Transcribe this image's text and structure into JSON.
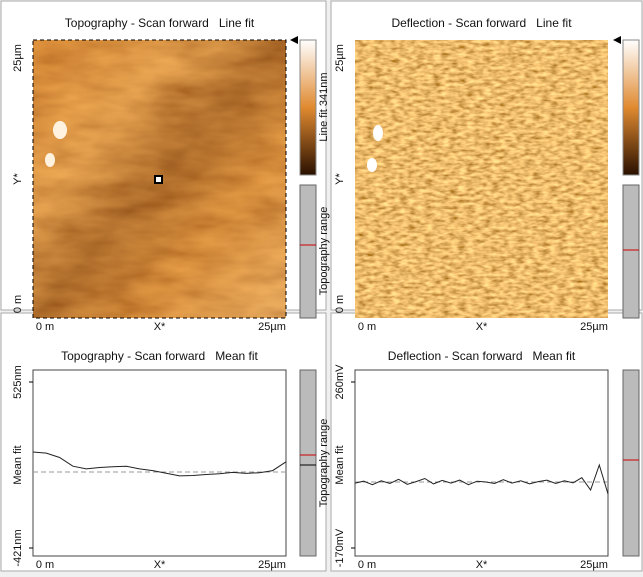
{
  "panels": [
    {
      "title": "Topography - Scan forward   Line fit",
      "x_labels": [
        "0 m",
        "X*",
        "25µm"
      ],
      "y_labels": [
        "25µm",
        "Y*",
        "0 m"
      ],
      "colorbar_label": "Line fit 341nm",
      "range_label": "Topography range"
    },
    {
      "title": "Deflection - Scan forward   Line fit",
      "x_labels": [
        "0 m",
        "X*",
        "25µm"
      ],
      "y_labels": [
        "25µm",
        "Y*",
        "0 m"
      ]
    },
    {
      "title": "Topography - Scan forward   Mean fit",
      "x_labels": [
        "0 m",
        "X*",
        "25µm"
      ],
      "y_label": "Mean fit",
      "range_label": "Topography range",
      "profile": {
        "ylim": [
          -421,
          525
        ],
        "yticks": [
          {
            "value": 525,
            "label": "525nm"
          },
          {
            "value": -421,
            "label": "-421nm"
          }
        ],
        "reference": 12,
        "values": [
          126,
          120,
          95,
          45,
          30,
          38,
          42,
          45,
          30,
          20,
          5,
          -10,
          -8,
          -2,
          2,
          10,
          4,
          8,
          20,
          70
        ]
      }
    },
    {
      "title": "Deflection - Scan forward   Mean fit",
      "x_labels": [
        "0 m",
        "X*",
        "25µm"
      ],
      "y_label": "Mean fit",
      "profile": {
        "ylim": [
          -170,
          260
        ],
        "yticks": [
          {
            "value": 260,
            "label": "260mV"
          },
          {
            "value": -170,
            "label": "-170mV"
          }
        ],
        "reference": 1,
        "values": [
          -2,
          3,
          -6,
          4,
          -3,
          8,
          -5,
          2,
          10,
          -4,
          5,
          -2,
          6,
          -6,
          3,
          1,
          -3,
          7,
          -2,
          4,
          -4,
          2,
          6,
          -3,
          4,
          -1,
          12,
          -20,
          45,
          -30
        ]
      }
    }
  ]
}
